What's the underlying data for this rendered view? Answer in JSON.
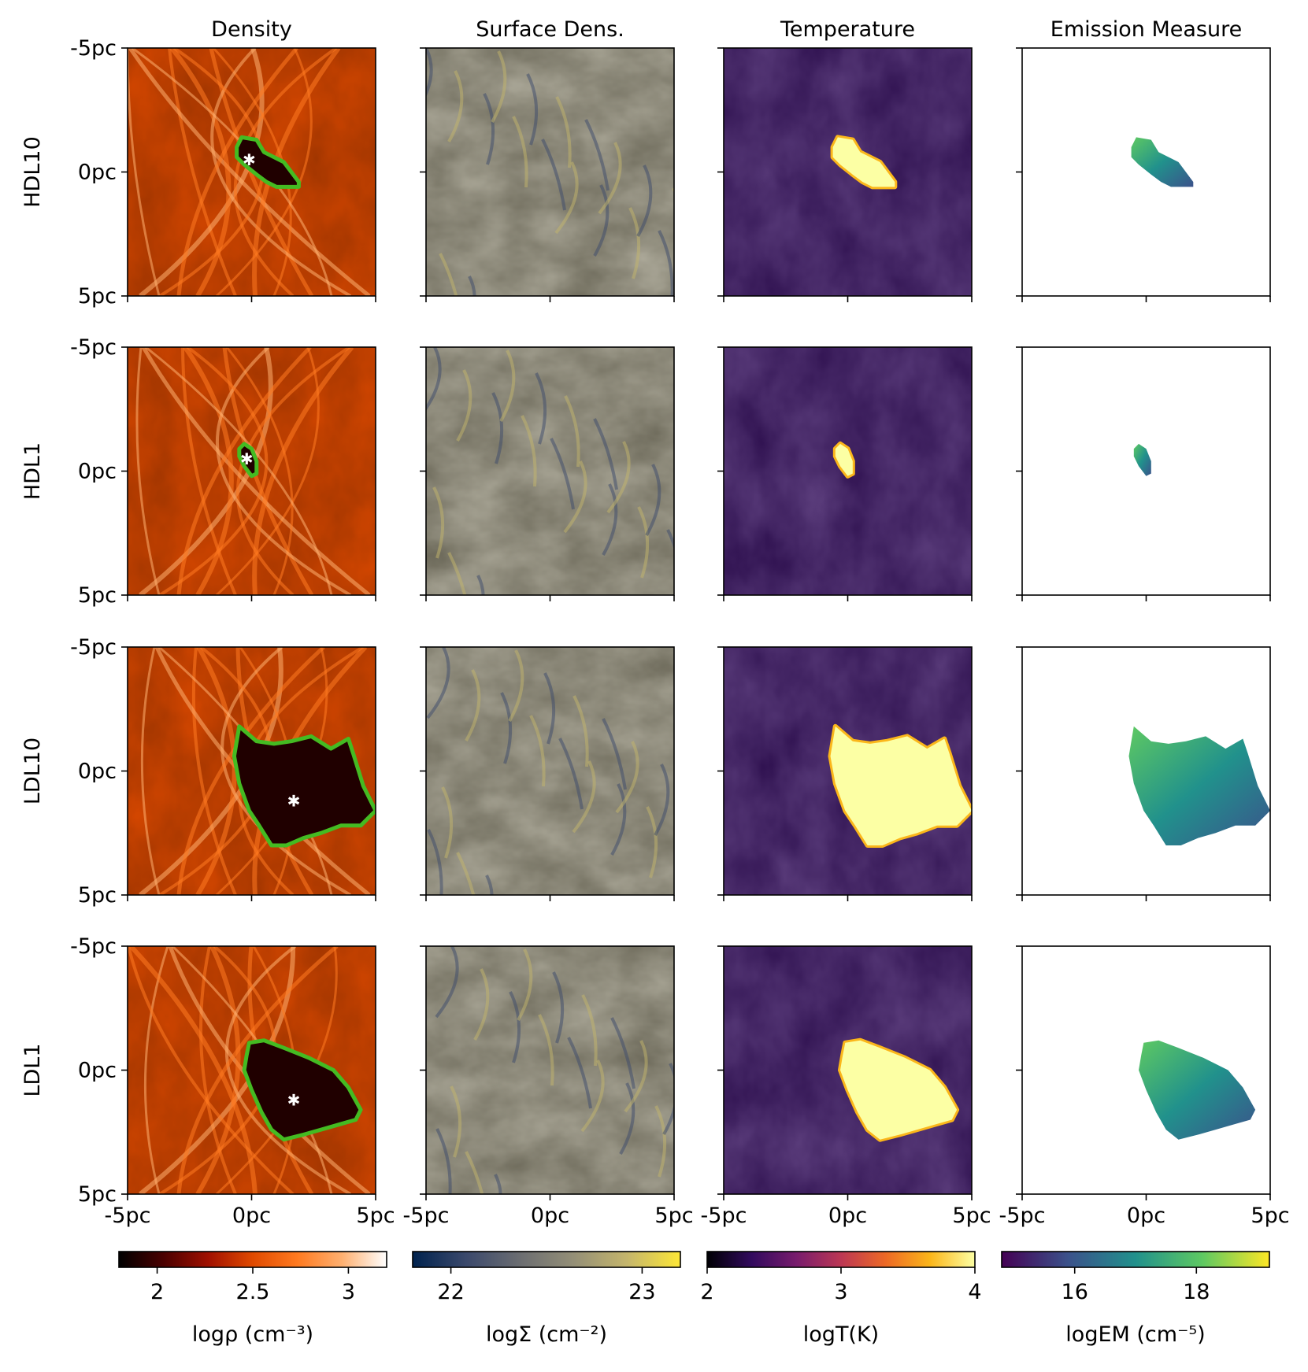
{
  "chart_data": {
    "type": "heatmap",
    "columns": [
      {
        "title": "Density",
        "quantity": "density"
      },
      {
        "title": "Surface Dens.",
        "quantity": "surface"
      },
      {
        "title": "Temperature",
        "quantity": "temperature"
      },
      {
        "title": "Emission Measure",
        "quantity": "emission"
      }
    ],
    "rows": [
      {
        "label": "HDL10",
        "star": [
          -0.1,
          -0.5
        ],
        "contour": [
          [
            -0.4,
            -1.4
          ],
          [
            0.2,
            -1.3
          ],
          [
            0.5,
            -0.8
          ],
          [
            1.3,
            -0.4
          ],
          [
            1.9,
            0.4
          ],
          [
            1.9,
            0.6
          ],
          [
            1.0,
            0.6
          ],
          [
            0.6,
            0.4
          ],
          [
            0.2,
            0.1
          ],
          [
            -0.3,
            -0.3
          ],
          [
            -0.6,
            -0.6
          ],
          [
            -0.6,
            -1.0
          ]
        ]
      },
      {
        "label": "HDL1",
        "star": [
          -0.2,
          -0.5
        ],
        "contour": [
          [
            -0.3,
            -1.1
          ],
          [
            0.0,
            -0.9
          ],
          [
            0.2,
            -0.4
          ],
          [
            0.2,
            0.1
          ],
          [
            0.0,
            0.2
          ],
          [
            -0.3,
            -0.2
          ],
          [
            -0.5,
            -0.6
          ],
          [
            -0.5,
            -0.9
          ]
        ]
      },
      {
        "label": "LDL10",
        "star": [
          1.7,
          1.2
        ],
        "contour": [
          [
            -0.5,
            -1.8
          ],
          [
            0.2,
            -1.2
          ],
          [
            0.9,
            -1.1
          ],
          [
            1.6,
            -1.2
          ],
          [
            2.4,
            -1.4
          ],
          [
            3.2,
            -0.9
          ],
          [
            3.9,
            -1.3
          ],
          [
            4.1,
            -0.7
          ],
          [
            4.5,
            0.6
          ],
          [
            5.0,
            1.6
          ],
          [
            4.4,
            2.2
          ],
          [
            3.6,
            2.2
          ],
          [
            2.8,
            2.5
          ],
          [
            2.1,
            2.7
          ],
          [
            1.4,
            3.0
          ],
          [
            0.8,
            3.0
          ],
          [
            0.3,
            2.2
          ],
          [
            -0.1,
            1.6
          ],
          [
            -0.5,
            0.5
          ],
          [
            -0.7,
            -0.6
          ]
        ]
      },
      {
        "label": "LDL1",
        "star": [
          1.7,
          1.2
        ],
        "contour": [
          [
            -0.1,
            -1.1
          ],
          [
            0.5,
            -1.2
          ],
          [
            1.3,
            -0.9
          ],
          [
            2.3,
            -0.5
          ],
          [
            3.3,
            0.0
          ],
          [
            3.9,
            0.7
          ],
          [
            4.4,
            1.6
          ],
          [
            4.2,
            2.0
          ],
          [
            3.5,
            2.2
          ],
          [
            2.8,
            2.4
          ],
          [
            2.1,
            2.6
          ],
          [
            1.3,
            2.8
          ],
          [
            0.8,
            2.4
          ],
          [
            0.4,
            1.7
          ],
          [
            0.0,
            0.8
          ],
          [
            -0.3,
            0.0
          ],
          [
            -0.2,
            -0.6
          ]
        ]
      }
    ],
    "x_ticks": [
      "-5pc",
      "0pc",
      "5pc"
    ],
    "y_ticks": [
      "-5pc",
      "0pc",
      "5pc"
    ],
    "xlim": [
      -5,
      5
    ],
    "ylim": [
      -5,
      5
    ],
    "colorbars": [
      {
        "label": "logρ (cm⁻³)",
        "range": [
          1.8,
          3.2
        ],
        "ticks": [
          2,
          2.5,
          3
        ],
        "tick_labels": [
          "2",
          "2.5",
          "3"
        ],
        "colormap": "afmhot",
        "colors": [
          "#000000",
          "#4a0000",
          "#a01000",
          "#e04a00",
          "#ff7a20",
          "#ffb070",
          "#ffffff"
        ]
      },
      {
        "label": "logΣ (cm⁻²)",
        "range": [
          21.8,
          23.2
        ],
        "ticks": [
          22,
          23
        ],
        "tick_labels": [
          "22",
          "23"
        ],
        "colormap": "cividis",
        "colors": [
          "#00224e",
          "#3b496c",
          "#6b6d71",
          "#948f77",
          "#c4b56c",
          "#fde737"
        ]
      },
      {
        "label": "logT(K)",
        "range": [
          2,
          4
        ],
        "ticks": [
          2,
          3,
          4
        ],
        "tick_labels": [
          "2",
          "3",
          "4"
        ],
        "colormap": "inferno",
        "colors": [
          "#000004",
          "#320a5e",
          "#781c6d",
          "#bc3754",
          "#ed6925",
          "#fbb61a",
          "#fcffa4"
        ]
      },
      {
        "label": "logEM (cm⁻⁵)",
        "range": [
          14.8,
          19.2
        ],
        "ticks": [
          16,
          18
        ],
        "tick_labels": [
          "16",
          "18"
        ],
        "colormap": "viridis",
        "colors": [
          "#440154",
          "#3b528b",
          "#21918c",
          "#5ec962",
          "#fde725"
        ]
      }
    ],
    "contour_color": "#44bb22",
    "star_color": "#ffffff"
  }
}
